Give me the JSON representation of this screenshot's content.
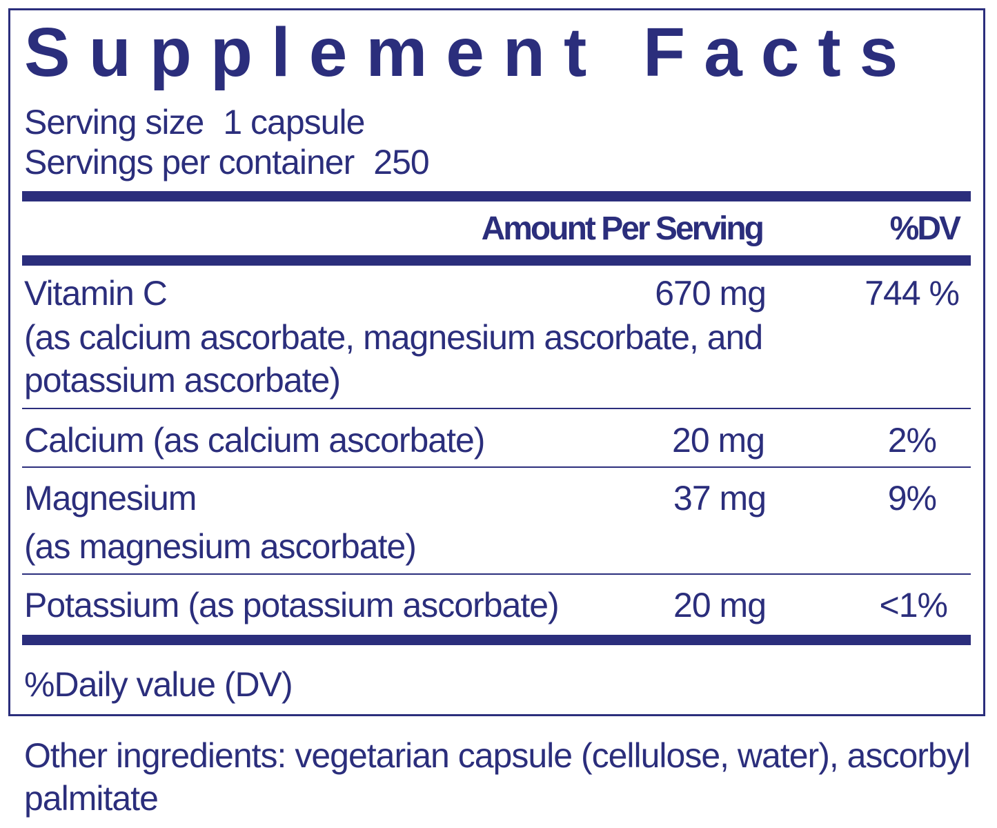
{
  "header": {
    "title": "Supplement Facts",
    "serving_size": {
      "label": "Serving size",
      "value": "1 capsule"
    },
    "servings_per_container": {
      "label": "Servings per container",
      "value": "250"
    }
  },
  "table": {
    "columns": [
      "Amount Per Serving",
      "%DV"
    ],
    "rows": [
      {
        "name": "Vitamin C",
        "amount": "670 mg",
        "dv": "744 %",
        "note": "(as calcium ascorbate, magnesium ascorbate, and potassium ascorbate)"
      },
      {
        "name": "Calcium (as calcium ascorbate)",
        "amount": "20 mg",
        "dv": "2%"
      },
      {
        "name": "Magnesium",
        "amount": "37 mg",
        "dv": "9%",
        "note": "(as magnesium ascorbate)"
      },
      {
        "name": "Potassium (as potassium ascorbate)",
        "amount": "20 mg",
        "dv": "<1%"
      }
    ]
  },
  "footnote": "%Daily value (DV)",
  "other_ingredients": "Other ingredients: vegetarian capsule (cellulose, water), ascorbyl palmitate"
}
